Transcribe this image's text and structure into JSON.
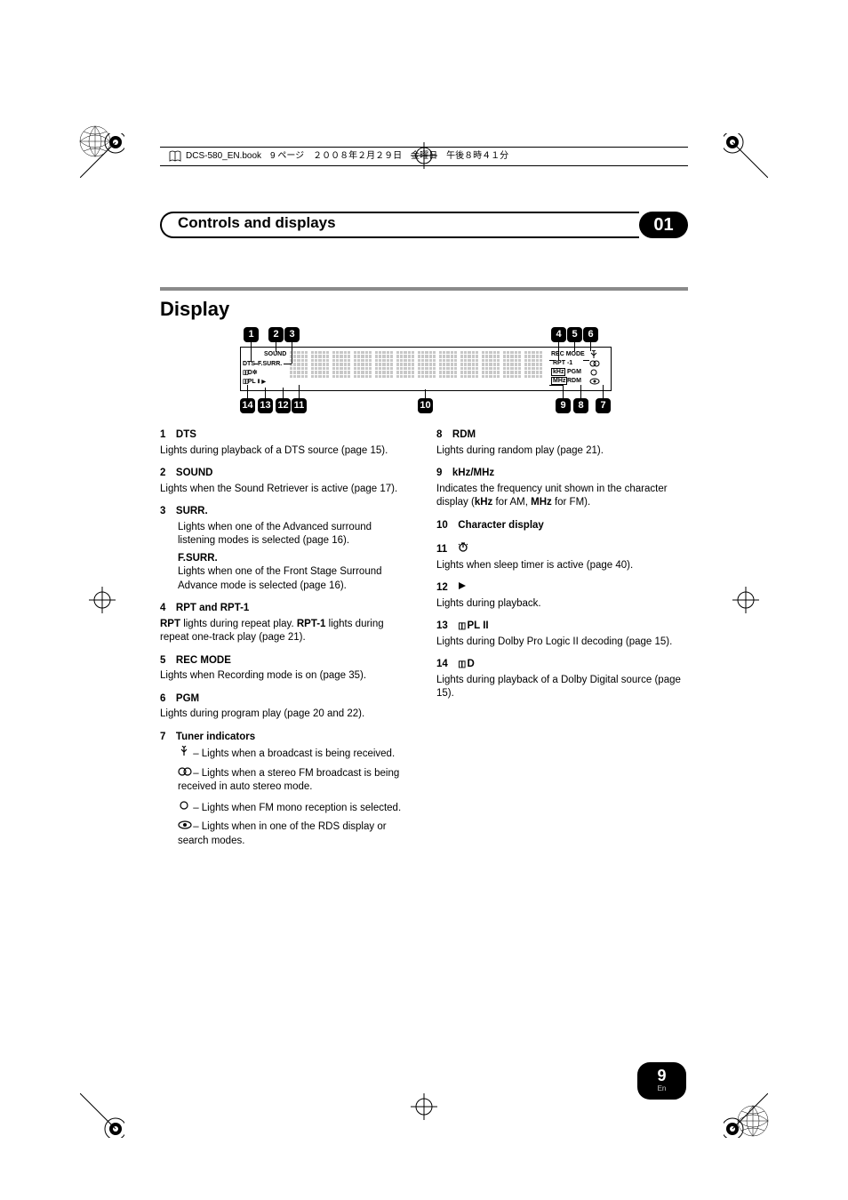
{
  "file_header": "DCS-580_EN.book　9 ページ　２００８年２月２９日　金曜日　午後８時４１分",
  "chapter": {
    "title": "Controls and displays",
    "num": "01"
  },
  "section": "Display",
  "diagram": {
    "callouts_top": [
      "1",
      "2",
      "3",
      "4",
      "5",
      "6"
    ],
    "callouts_bottom": [
      "14",
      "13",
      "12",
      "11",
      "10",
      "9",
      "8",
      "7"
    ],
    "labels": {
      "dts": "DTS",
      "sound": "SOUND",
      "fsurr": "F.SURR.",
      "dd": "D",
      "dpl": "PL",
      "recmode": "REC MODE",
      "rpt": "RPT -1",
      "khz": "kHz",
      "pgm": "PGM",
      "mhz": "MHz",
      "rdm": "RDM"
    }
  },
  "left_items": [
    {
      "n": "1",
      "t": "DTS",
      "body": "Lights during playback of a DTS source (page 15)."
    },
    {
      "n": "2",
      "t": "SOUND",
      "body": "Lights when the Sound Retriever is active (page 17)."
    },
    {
      "n": "3",
      "t": "SURR.",
      "sub": true,
      "body": "Lights when one of the Advanced surround listening modes is selected (page 16).",
      "sub2_t": "F.SURR.",
      "sub2_body": "Lights when one of the Front Stage Surround Advance mode is selected (page 16)."
    },
    {
      "n": "4",
      "t": "RPT and RPT-1",
      "body_html": "<span class='b'>RPT</span> lights during repeat play. <span class='b'>RPT-1</span> lights during repeat one-track play (page 21)."
    },
    {
      "n": "5",
      "t": "REC MODE",
      "body": "Lights when Recording mode is on (page 35)."
    },
    {
      "n": "6",
      "t": "PGM",
      "body": "Lights during program play (page 20 and 22)."
    },
    {
      "n": "7",
      "t": "Tuner indicators",
      "tuner": [
        {
          "g": "ant",
          "txt": " – Lights when a broadcast is being received."
        },
        {
          "g": "stereo",
          "txt": " – Lights when a stereo FM broadcast is being received in auto stereo mode."
        },
        {
          "g": "mono",
          "txt": " – Lights when FM mono reception is selected."
        },
        {
          "g": "rds",
          "txt": " – Lights when in one of the RDS display or search modes."
        }
      ]
    }
  ],
  "right_items": [
    {
      "n": "8",
      "t": "RDM",
      "body": "Lights during random play (page 21)."
    },
    {
      "n": "9",
      "t": "kHz/MHz",
      "body_html": "Indicates the frequency unit shown in the character display (<span class='b'>kHz</span> for AM, <span class='b'>MHz</span> for FM)."
    },
    {
      "n": "10",
      "t": "Character display",
      "body": ""
    },
    {
      "n": "11",
      "t": "",
      "icon": "timer",
      "body": "Lights when sleep timer is active (page 40)."
    },
    {
      "n": "12",
      "t": "",
      "icon": "play",
      "body": "Lights during playback."
    },
    {
      "n": "13",
      "t": "2 PL II",
      "dolby": true,
      "body": "Lights during Dolby Pro Logic II decoding (page 15)."
    },
    {
      "n": "14",
      "t": "2 D",
      "dolby": true,
      "body": "Lights during playback of a Dolby Digital source (page 15)."
    }
  ],
  "page": {
    "num": "9",
    "lang": "En"
  },
  "colors": {
    "rule": "#8a8a8a",
    "dot": "#c8c8c8"
  }
}
